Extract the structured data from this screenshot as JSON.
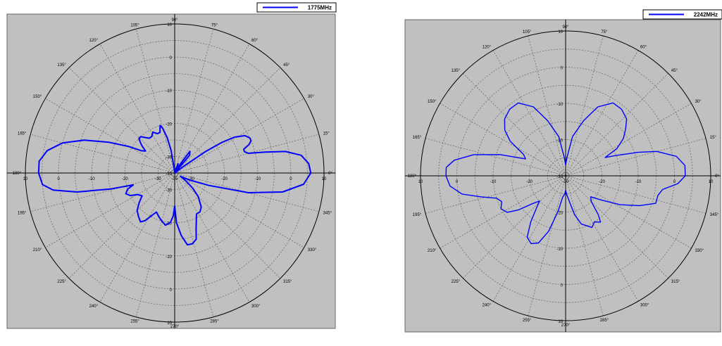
{
  "chart_data": [
    {
      "type": "polar-line",
      "title": "",
      "series": [
        {
          "name": "1775MHz",
          "color": "#0000ff"
        }
      ],
      "r_unit": "dB",
      "r_range": [
        -35,
        10
      ],
      "r_ticks": [
        "10",
        "0",
        "-10",
        "-20",
        "-30",
        "-35"
      ],
      "r_tick_values": [
        10,
        0,
        -10,
        -20,
        -30,
        -35
      ],
      "angle_ticks": [
        "0°",
        "15°",
        "30°",
        "45°",
        "60°",
        "75°",
        "90°",
        "105°",
        "120°",
        "135°",
        "150°",
        "165°",
        "180°",
        "195°",
        "210°",
        "225°",
        "240°",
        "255°",
        "270°",
        "285°",
        "300°",
        "315°",
        "330°",
        "345°"
      ],
      "angle_step_deg": 15,
      "grid": true,
      "legend": "top-right",
      "pattern_points": [
        {
          "a": 0,
          "r": 6
        },
        {
          "a": 4,
          "r": 5.5
        },
        {
          "a": 8,
          "r": 3.5
        },
        {
          "a": 11,
          "r": -1
        },
        {
          "a": 13,
          "r": -7
        },
        {
          "a": 15,
          "r": -12
        },
        {
          "a": 17,
          "r": -13
        },
        {
          "a": 19,
          "r": -13
        },
        {
          "a": 21,
          "r": -11
        },
        {
          "a": 23,
          "r": -10
        },
        {
          "a": 25,
          "r": -10
        },
        {
          "a": 28,
          "r": -11
        },
        {
          "a": 31,
          "r": -14
        },
        {
          "a": 33,
          "r": -18
        },
        {
          "a": 35,
          "r": -24
        },
        {
          "a": 37,
          "r": -32
        },
        {
          "a": 39,
          "r": -35
        },
        {
          "a": 47,
          "r": -35
        },
        {
          "a": 50,
          "r": -28
        },
        {
          "a": 55,
          "r": -27
        },
        {
          "a": 58,
          "r": -32
        },
        {
          "a": 60,
          "r": -35
        },
        {
          "a": 62,
          "r": -35
        },
        {
          "a": 63,
          "r": -35
        },
        {
          "a": 66,
          "r": -33
        },
        {
          "a": 70,
          "r": -32
        },
        {
          "a": 75,
          "r": -34
        },
        {
          "a": 80,
          "r": -35
        },
        {
          "a": 94,
          "r": -35
        },
        {
          "a": 96,
          "r": -34
        },
        {
          "a": 99,
          "r": -28
        },
        {
          "a": 102,
          "r": -24
        },
        {
          "a": 105,
          "r": -21
        },
        {
          "a": 107,
          "r": -20
        },
        {
          "a": 110,
          "r": -22
        },
        {
          "a": 114,
          "r": -22
        },
        {
          "a": 118,
          "r": -21
        },
        {
          "a": 122,
          "r": -22
        },
        {
          "a": 126,
          "r": -22
        },
        {
          "a": 130,
          "r": -21
        },
        {
          "a": 133,
          "r": -20
        },
        {
          "a": 136,
          "r": -20
        },
        {
          "a": 138,
          "r": -21
        },
        {
          "a": 140,
          "r": -22
        },
        {
          "a": 143,
          "r": -24
        },
        {
          "a": 146,
          "r": -23
        },
        {
          "a": 150,
          "r": -19
        },
        {
          "a": 155,
          "r": -13
        },
        {
          "a": 160,
          "r": -6
        },
        {
          "a": 165,
          "r": 0
        },
        {
          "a": 170,
          "r": 4
        },
        {
          "a": 175,
          "r": 6
        },
        {
          "a": 180,
          "r": 6
        },
        {
          "a": 185,
          "r": 5
        },
        {
          "a": 188,
          "r": 2
        },
        {
          "a": 191,
          "r": -5
        },
        {
          "a": 194,
          "r": -15
        },
        {
          "a": 196,
          "r": -22
        },
        {
          "a": 199,
          "r": -20
        },
        {
          "a": 203,
          "r": -19
        },
        {
          "a": 207,
          "r": -20
        },
        {
          "a": 210,
          "r": -22
        },
        {
          "a": 215,
          "r": -23
        },
        {
          "a": 220,
          "r": -21
        },
        {
          "a": 225,
          "r": -19
        },
        {
          "a": 230,
          "r": -18
        },
        {
          "a": 235,
          "r": -17
        },
        {
          "a": 238,
          "r": -18
        },
        {
          "a": 241,
          "r": -20
        },
        {
          "a": 245,
          "r": -22
        },
        {
          "a": 250,
          "r": -21
        },
        {
          "a": 255,
          "r": -20
        },
        {
          "a": 260,
          "r": -19
        },
        {
          "a": 265,
          "r": -20
        },
        {
          "a": 268,
          "r": -22
        },
        {
          "a": 270,
          "r": -25
        },
        {
          "a": 272,
          "r": -20
        },
        {
          "a": 276,
          "r": -16
        },
        {
          "a": 280,
          "r": -13
        },
        {
          "a": 284,
          "r": -13
        },
        {
          "a": 288,
          "r": -14
        },
        {
          "a": 291,
          "r": -17
        },
        {
          "a": 294,
          "r": -19
        },
        {
          "a": 298,
          "r": -21
        },
        {
          "a": 303,
          "r": -21
        },
        {
          "a": 308,
          "r": -22
        },
        {
          "a": 315,
          "r": -25
        },
        {
          "a": 320,
          "r": -28
        },
        {
          "a": 325,
          "r": -31
        },
        {
          "a": 330,
          "r": -33
        },
        {
          "a": 335,
          "r": -30
        },
        {
          "a": 340,
          "r": -24
        },
        {
          "a": 345,
          "r": -12
        },
        {
          "a": 350,
          "r": -2
        },
        {
          "a": 355,
          "r": 4
        },
        {
          "a": 360,
          "r": 6
        }
      ]
    },
    {
      "type": "polar-line",
      "title": "",
      "series": [
        {
          "name": "2242MHz",
          "color": "#0000ff"
        }
      ],
      "r_unit": "dB",
      "r_range": [
        -30,
        10
      ],
      "r_ticks": [
        "10",
        "0",
        "-10",
        "-20",
        "-30"
      ],
      "r_tick_values": [
        10,
        0,
        -10,
        -20,
        -30
      ],
      "angle_ticks": [
        "0°",
        "15°",
        "30°",
        "45°",
        "60°",
        "75°",
        "90°",
        "105°",
        "120°",
        "135°",
        "150°",
        "165°",
        "180°",
        "195°",
        "210°",
        "225°",
        "240°",
        "255°",
        "270°",
        "285°",
        "300°",
        "315°",
        "330°",
        "345°"
      ],
      "angle_step_deg": 15,
      "grid": true,
      "legend": "top-right",
      "pattern_points": [
        {
          "a": 0,
          "r": 3
        },
        {
          "a": 5,
          "r": 3
        },
        {
          "a": 10,
          "r": 1
        },
        {
          "a": 15,
          "r": -4
        },
        {
          "a": 18,
          "r": -9
        },
        {
          "a": 22,
          "r": -15
        },
        {
          "a": 25,
          "r": -18
        },
        {
          "a": 28,
          "r": -14
        },
        {
          "a": 33,
          "r": -11
        },
        {
          "a": 38,
          "r": -9
        },
        {
          "a": 43,
          "r": -7
        },
        {
          "a": 50,
          "r": -6
        },
        {
          "a": 57,
          "r": -6
        },
        {
          "a": 65,
          "r": -9
        },
        {
          "a": 72,
          "r": -14
        },
        {
          "a": 80,
          "r": -19
        },
        {
          "a": 86,
          "r": -25
        },
        {
          "a": 90,
          "r": -27
        },
        {
          "a": 94,
          "r": -25
        },
        {
          "a": 100,
          "r": -19
        },
        {
          "a": 108,
          "r": -14
        },
        {
          "a": 115,
          "r": -9
        },
        {
          "a": 123,
          "r": -6
        },
        {
          "a": 130,
          "r": -6
        },
        {
          "a": 137,
          "r": -7
        },
        {
          "a": 143,
          "r": -9
        },
        {
          "a": 148,
          "r": -12
        },
        {
          "a": 153,
          "r": -17
        },
        {
          "a": 157,
          "r": -18
        },
        {
          "a": 162,
          "r": -11
        },
        {
          "a": 167,
          "r": -4
        },
        {
          "a": 172,
          "r": 1
        },
        {
          "a": 176,
          "r": 3
        },
        {
          "a": 180,
          "r": 3
        },
        {
          "a": 185,
          "r": 2
        },
        {
          "a": 190,
          "r": -1
        },
        {
          "a": 194,
          "r": -6
        },
        {
          "a": 198,
          "r": -10
        },
        {
          "a": 202,
          "r": -11
        },
        {
          "a": 207,
          "r": -10
        },
        {
          "a": 212,
          "r": -11
        },
        {
          "a": 216,
          "r": -14
        },
        {
          "a": 220,
          "r": -18
        },
        {
          "a": 224,
          "r": -20
        },
        {
          "a": 228,
          "r": -18
        },
        {
          "a": 233,
          "r": -14
        },
        {
          "a": 238,
          "r": -10
        },
        {
          "a": 243,
          "r": -9
        },
        {
          "a": 248,
          "r": -10
        },
        {
          "a": 253,
          "r": -14
        },
        {
          "a": 258,
          "r": -20
        },
        {
          "a": 262,
          "r": -24
        },
        {
          "a": 267,
          "r": -25
        },
        {
          "a": 270,
          "r": -26
        },
        {
          "a": 273,
          "r": -25
        },
        {
          "a": 278,
          "r": -23
        },
        {
          "a": 283,
          "r": -19
        },
        {
          "a": 288,
          "r": -16
        },
        {
          "a": 293,
          "r": -15
        },
        {
          "a": 297,
          "r": -14
        },
        {
          "a": 302,
          "r": -15
        },
        {
          "a": 307,
          "r": -14
        },
        {
          "a": 310,
          "r": -16
        },
        {
          "a": 315,
          "r": -20
        },
        {
          "a": 320,
          "r": -21
        },
        {
          "a": 326,
          "r": -18
        },
        {
          "a": 332,
          "r": -13
        },
        {
          "a": 338,
          "r": -8
        },
        {
          "a": 343,
          "r": -4
        },
        {
          "a": 348,
          "r": -4
        },
        {
          "a": 352,
          "r": -3
        },
        {
          "a": 356,
          "r": 1
        },
        {
          "a": 360,
          "r": 3
        }
      ]
    }
  ]
}
